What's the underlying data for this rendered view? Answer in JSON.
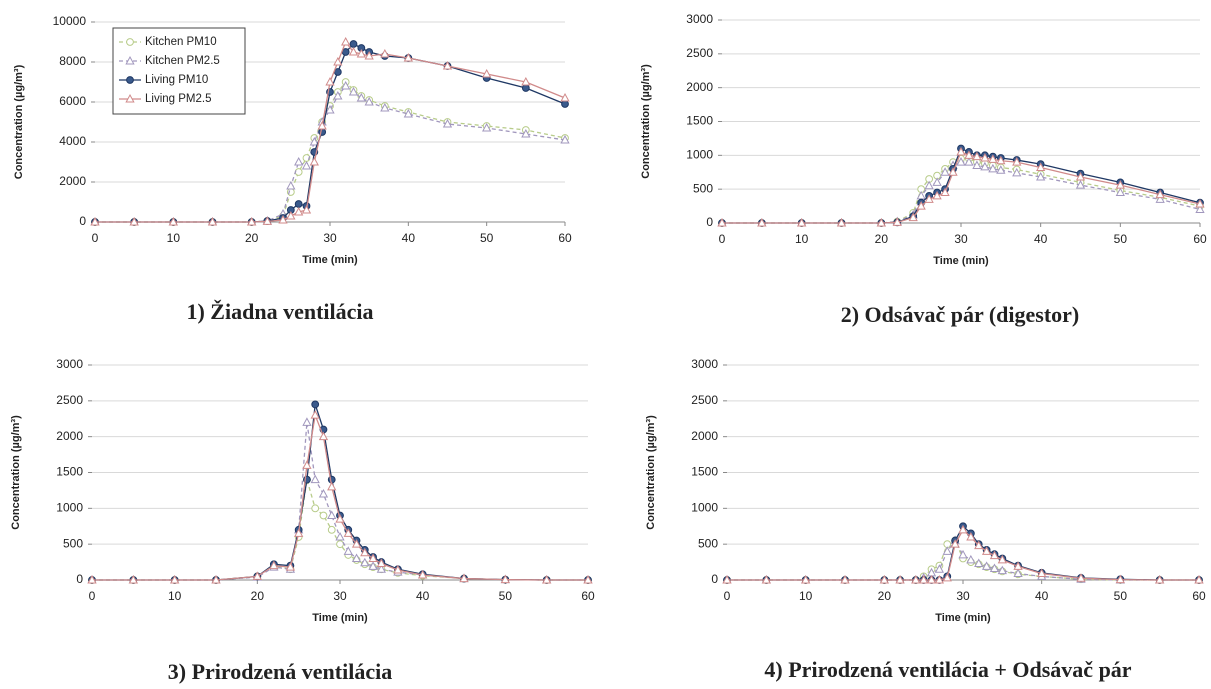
{
  "chart_data": [
    {
      "type": "line",
      "caption": "1)  Žiadna ventilácia",
      "xlabel": "Time (min)",
      "ylabel": "Concentration (µg/m³)",
      "x": [
        0,
        5,
        10,
        15,
        20,
        22,
        24,
        25,
        26,
        27,
        28,
        29,
        30,
        31,
        32,
        33,
        34,
        35,
        37,
        40,
        45,
        50,
        55,
        60
      ],
      "xlim": [
        0,
        60
      ],
      "xticks": [
        0,
        10,
        20,
        30,
        40,
        50,
        60
      ],
      "ylim": [
        0,
        10000
      ],
      "yticks": [
        0,
        2000,
        4000,
        6000,
        8000,
        10000
      ],
      "grid": true,
      "legend": "upper left",
      "series": [
        {
          "name": "Kitchen PM10",
          "color": "#b8cc8a",
          "marker": "circle",
          "marker_fill": "#ffffff",
          "dashed": true,
          "values": [
            0,
            0,
            0,
            0,
            0,
            50,
            300,
            1500,
            2500,
            3200,
            4200,
            5000,
            5800,
            6500,
            7000,
            6600,
            6300,
            6100,
            5800,
            5500,
            5000,
            4800,
            4600,
            4200
          ]
        },
        {
          "name": "Kitchen PM2.5",
          "color": "#a197bd",
          "marker": "triangle",
          "marker_fill": "#ffffff",
          "dashed": true,
          "values": [
            0,
            0,
            0,
            0,
            0,
            50,
            400,
            1800,
            3000,
            2800,
            4000,
            5000,
            5600,
            6300,
            6800,
            6500,
            6200,
            6000,
            5700,
            5400,
            4900,
            4700,
            4400,
            4100
          ]
        },
        {
          "name": "Living PM10",
          "color": "#1f3864",
          "marker": "circle",
          "marker_fill": "#3a5a8c",
          "dashed": false,
          "values": [
            0,
            0,
            0,
            0,
            0,
            50,
            200,
            600,
            900,
            800,
            3500,
            4500,
            6500,
            7500,
            8500,
            8900,
            8700,
            8500,
            8300,
            8200,
            7800,
            7200,
            6700,
            5900
          ]
        },
        {
          "name": "Living PM2.5",
          "color": "#d08a8a",
          "marker": "triangle",
          "marker_fill": "#ffffff",
          "dashed": false,
          "values": [
            0,
            0,
            0,
            0,
            0,
            30,
            100,
            300,
            500,
            600,
            3000,
            4800,
            7000,
            8000,
            9000,
            8500,
            8400,
            8300,
            8400,
            8200,
            7800,
            7400,
            7000,
            6200
          ]
        }
      ]
    },
    {
      "type": "line",
      "caption": "2)  Odsávač pár (digestor)",
      "xlabel": "Time (min)",
      "ylabel": "Concentration (µg/m³)",
      "x": [
        0,
        5,
        10,
        15,
        20,
        22,
        24,
        25,
        26,
        27,
        28,
        29,
        30,
        31,
        32,
        33,
        34,
        35,
        37,
        40,
        45,
        50,
        55,
        60
      ],
      "xlim": [
        0,
        60
      ],
      "xticks": [
        0,
        10,
        20,
        30,
        40,
        50,
        60
      ],
      "ylim": [
        0,
        3000
      ],
      "yticks": [
        0,
        500,
        1000,
        1500,
        2000,
        2500,
        3000
      ],
      "grid": true,
      "series": [
        {
          "color": "#b8cc8a",
          "marker": "circle",
          "marker_fill": "#ffffff",
          "dashed": true,
          "values": [
            0,
            0,
            0,
            0,
            0,
            20,
            150,
            500,
            650,
            700,
            800,
            900,
            950,
            950,
            900,
            880,
            850,
            820,
            790,
            720,
            600,
            480,
            380,
            250
          ]
        },
        {
          "color": "#a197bd",
          "marker": "triangle",
          "marker_fill": "#ffffff",
          "dashed": true,
          "values": [
            0,
            0,
            0,
            0,
            0,
            20,
            120,
            400,
            550,
            600,
            750,
            850,
            900,
            900,
            850,
            830,
            800,
            780,
            740,
            680,
            560,
            450,
            350,
            200
          ]
        },
        {
          "color": "#1f3864",
          "marker": "circle",
          "marker_fill": "#3a5a8c",
          "dashed": false,
          "values": [
            0,
            0,
            0,
            0,
            0,
            10,
            100,
            300,
            400,
            450,
            500,
            800,
            1100,
            1050,
            1000,
            1000,
            980,
            960,
            930,
            870,
            730,
            600,
            450,
            300
          ]
        },
        {
          "color": "#d08a8a",
          "marker": "triangle",
          "marker_fill": "#ffffff",
          "dashed": false,
          "values": [
            0,
            0,
            0,
            0,
            0,
            10,
            80,
            250,
            350,
            400,
            450,
            750,
            1050,
            1000,
            980,
            960,
            940,
            920,
            900,
            820,
            680,
            560,
            420,
            280
          ]
        }
      ]
    },
    {
      "type": "line",
      "caption": "3)  Prirodzená ventilácia",
      "xlabel": "Time (min)",
      "ylabel": "Concentration (µg/m³)",
      "x": [
        0,
        5,
        10,
        15,
        20,
        22,
        24,
        25,
        26,
        27,
        28,
        29,
        30,
        31,
        32,
        33,
        34,
        35,
        37,
        40,
        45,
        50,
        55,
        60
      ],
      "xlim": [
        0,
        60
      ],
      "xticks": [
        0,
        10,
        20,
        30,
        40,
        50,
        60
      ],
      "ylim": [
        0,
        3000
      ],
      "yticks": [
        0,
        500,
        1000,
        1500,
        2000,
        2500,
        3000
      ],
      "grid": true,
      "series": [
        {
          "color": "#b8cc8a",
          "marker": "circle",
          "marker_fill": "#ffffff",
          "dashed": true,
          "values": [
            0,
            0,
            0,
            0,
            50,
            200,
            150,
            600,
            1400,
            1000,
            900,
            700,
            500,
            350,
            280,
            220,
            180,
            150,
            100,
            60,
            20,
            5,
            0,
            0
          ]
        },
        {
          "color": "#a197bd",
          "marker": "triangle",
          "marker_fill": "#ffffff",
          "dashed": true,
          "values": [
            0,
            0,
            0,
            0,
            40,
            180,
            150,
            700,
            2200,
            1400,
            1200,
            900,
            600,
            400,
            300,
            240,
            190,
            150,
            110,
            70,
            20,
            5,
            0,
            0
          ]
        },
        {
          "color": "#1f3864",
          "marker": "circle",
          "marker_fill": "#3a5a8c",
          "dashed": false,
          "values": [
            0,
            0,
            0,
            0,
            50,
            220,
            200,
            700,
            1400,
            2450,
            2100,
            1400,
            900,
            700,
            550,
            420,
            320,
            250,
            150,
            80,
            20,
            5,
            0,
            0
          ]
        },
        {
          "color": "#d08a8a",
          "marker": "triangle",
          "marker_fill": "#ffffff",
          "dashed": false,
          "values": [
            0,
            0,
            0,
            0,
            50,
            200,
            180,
            650,
            1600,
            2300,
            2000,
            1300,
            850,
            650,
            500,
            380,
            300,
            230,
            140,
            70,
            20,
            5,
            0,
            0
          ]
        }
      ]
    },
    {
      "type": "line",
      "caption": "4)  Prirodzená ventilácia + Odsávač pár",
      "xlabel": "Time (min)",
      "ylabel": "Concentration (µg/m³)",
      "x": [
        0,
        5,
        10,
        15,
        20,
        22,
        24,
        25,
        26,
        27,
        28,
        29,
        30,
        31,
        32,
        33,
        34,
        35,
        37,
        40,
        45,
        50,
        55,
        60
      ],
      "xlim": [
        0,
        60
      ],
      "xticks": [
        0,
        10,
        20,
        30,
        40,
        50,
        60
      ],
      "ylim": [
        0,
        3000
      ],
      "yticks": [
        0,
        500,
        1000,
        1500,
        2000,
        2500,
        3000
      ],
      "grid": true,
      "series": [
        {
          "color": "#b8cc8a",
          "marker": "circle",
          "marker_fill": "#ffffff",
          "dashed": true,
          "values": [
            0,
            0,
            0,
            0,
            0,
            0,
            0,
            50,
            150,
            200,
            500,
            550,
            300,
            250,
            220,
            180,
            150,
            120,
            80,
            50,
            10,
            0,
            0,
            0
          ]
        },
        {
          "color": "#a197bd",
          "marker": "triangle",
          "marker_fill": "#ffffff",
          "dashed": true,
          "values": [
            0,
            0,
            0,
            0,
            0,
            0,
            0,
            30,
            100,
            150,
            400,
            550,
            350,
            280,
            230,
            190,
            160,
            130,
            90,
            50,
            10,
            0,
            0,
            0
          ]
        },
        {
          "color": "#1f3864",
          "marker": "circle",
          "marker_fill": "#3a5a8c",
          "dashed": false,
          "values": [
            0,
            0,
            0,
            0,
            0,
            0,
            0,
            0,
            0,
            0,
            50,
            550,
            750,
            650,
            500,
            420,
            360,
            300,
            200,
            100,
            30,
            10,
            0,
            0
          ]
        },
        {
          "color": "#d08a8a",
          "marker": "triangle",
          "marker_fill": "#ffffff",
          "dashed": false,
          "values": [
            0,
            0,
            0,
            0,
            0,
            0,
            0,
            0,
            0,
            0,
            30,
            500,
            700,
            600,
            480,
            400,
            340,
            280,
            190,
            90,
            25,
            5,
            0,
            0
          ]
        }
      ]
    }
  ]
}
